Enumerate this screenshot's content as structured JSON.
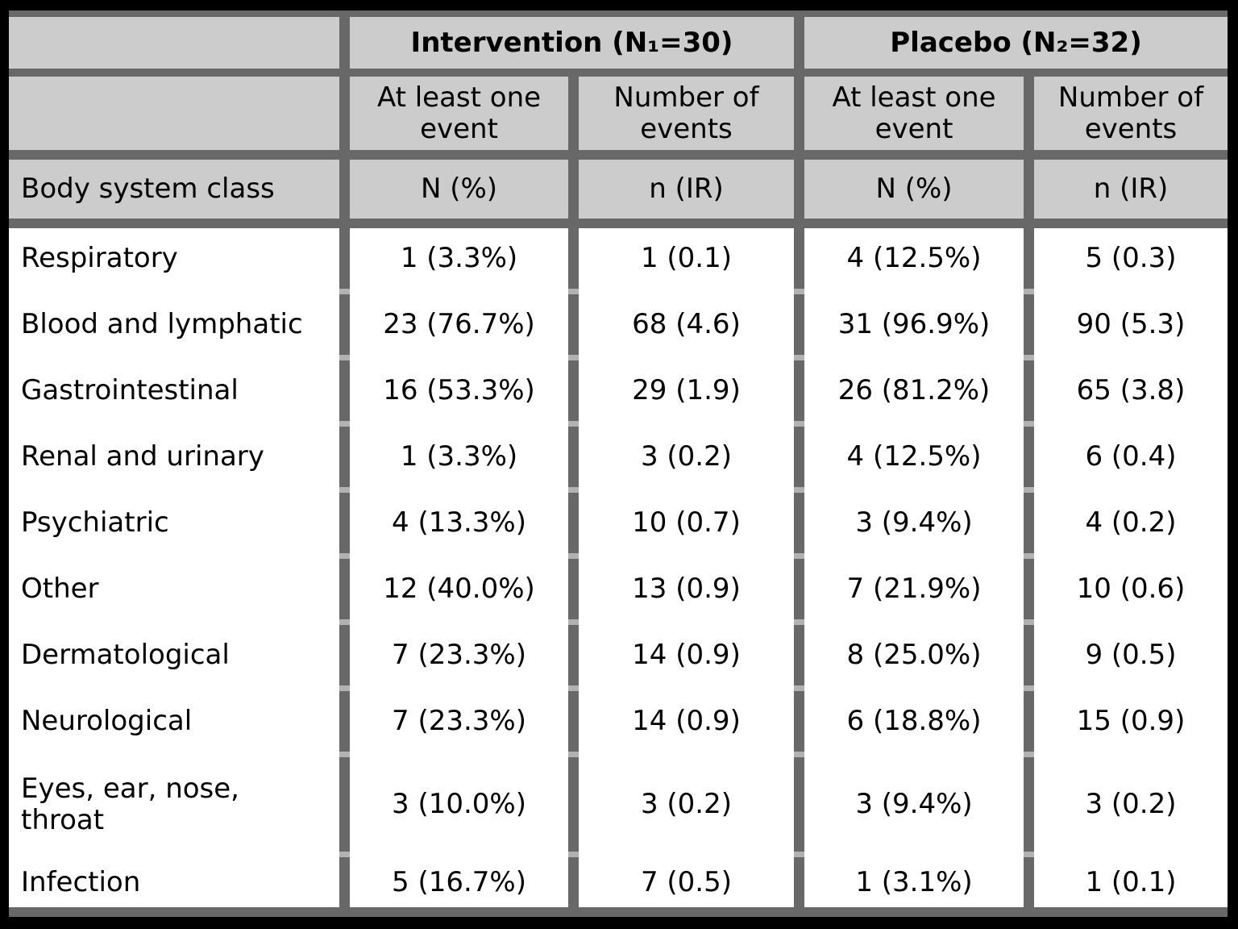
{
  "colors": {
    "page_background": "#000000",
    "header_cell_background": "#cccccc",
    "body_cell_background": "#ffffff",
    "table_border": "#686868",
    "row_separator_notch": "#b2b2b2",
    "text": "#000000"
  },
  "chart_data": {
    "type": "table",
    "group_headers": [
      "Intervention (N₁=30)",
      "Placebo (N₂=32)"
    ],
    "group_sizes": [
      30,
      32
    ],
    "subcolumn_headers": [
      "At least one event",
      "Number of events",
      "At least one event",
      "Number of events"
    ],
    "stub_header": "Body system class",
    "measure_headers": [
      "N (%)",
      "n (IR)",
      "N (%)",
      "n (IR)"
    ],
    "rows": [
      {
        "label": "Respiratory",
        "values": [
          "1 (3.3%)",
          "1 (0.1)",
          "4 (12.5%)",
          "5 (0.3)"
        ]
      },
      {
        "label": "Blood and lymphatic",
        "values": [
          "23 (76.7%)",
          "68 (4.6)",
          "31 (96.9%)",
          "90 (5.3)"
        ]
      },
      {
        "label": "Gastrointestinal",
        "values": [
          "16 (53.3%)",
          "29 (1.9)",
          "26 (81.2%)",
          "65 (3.8)"
        ]
      },
      {
        "label": "Renal and urinary",
        "values": [
          "1 (3.3%)",
          "3 (0.2)",
          "4 (12.5%)",
          "6 (0.4)"
        ]
      },
      {
        "label": "Psychiatric",
        "values": [
          "4 (13.3%)",
          "10 (0.7)",
          "3 (9.4%)",
          "4 (0.2)"
        ]
      },
      {
        "label": "Other",
        "values": [
          "12 (40.0%)",
          "13 (0.9)",
          "7 (21.9%)",
          "10 (0.6)"
        ]
      },
      {
        "label": "Dermatological",
        "values": [
          "7 (23.3%)",
          "14 (0.9)",
          "8 (25.0%)",
          "9 (0.5)"
        ]
      },
      {
        "label": "Neurological",
        "values": [
          "7 (23.3%)",
          "14 (0.9)",
          "6 (18.8%)",
          "15 (0.9)"
        ]
      },
      {
        "label": "Eyes, ear, nose, throat",
        "values": [
          "3 (10.0%)",
          "3 (0.2)",
          "3 (9.4%)",
          "3 (0.2)"
        ]
      },
      {
        "label": "Infection",
        "values": [
          "5 (16.7%)",
          "7 (0.5)",
          "1 (3.1%)",
          "1 (0.1)"
        ]
      }
    ]
  }
}
